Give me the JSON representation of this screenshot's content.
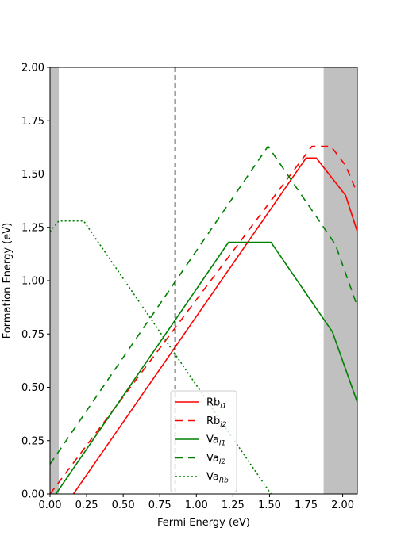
{
  "chart_data": {
    "type": "line",
    "title": "",
    "xlabel": "Fermi Energy (eV)",
    "ylabel": "Formation Energy (eV)",
    "xlim": [
      0.0,
      2.1
    ],
    "ylim": [
      0.0,
      2.0
    ],
    "xticks": [
      "0.00",
      "0.25",
      "0.50",
      "0.75",
      "1.00",
      "1.25",
      "1.50",
      "1.75",
      "2.00"
    ],
    "yticks": [
      "0.00",
      "0.25",
      "0.50",
      "0.75",
      "1.00",
      "1.25",
      "1.50",
      "1.75",
      "2.00"
    ],
    "fermi_level": 0.855,
    "shaded_regions": [
      [
        0.0,
        0.06
      ],
      [
        1.87,
        2.1
      ]
    ],
    "legend_position": "lower-center",
    "grid": false,
    "series": [
      {
        "name": "Rb",
        "subscript": "i1",
        "color": "#ff0000",
        "style": "solid",
        "x": [
          0.16,
          1.75,
          1.82,
          2.02,
          2.1
        ],
        "y": [
          0.0,
          1.575,
          1.575,
          1.4,
          1.23
        ]
      },
      {
        "name": "Rb",
        "subscript": "i2",
        "color": "#ff0000",
        "style": "dashed",
        "x": [
          0.0,
          1.79,
          1.92,
          2.02,
          2.1
        ],
        "y": [
          0.0,
          1.63,
          1.63,
          1.54,
          1.41
        ]
      },
      {
        "name": "Va",
        "subscript": "I1",
        "color": "#008000",
        "style": "solid",
        "x": [
          0.04,
          1.22,
          1.51,
          1.93,
          2.1
        ],
        "y": [
          0.0,
          1.18,
          1.18,
          0.76,
          0.43
        ]
      },
      {
        "name": "Va",
        "subscript": "I2",
        "color": "#008000",
        "style": "dashed",
        "x": [
          0.0,
          1.49,
          1.95,
          2.1
        ],
        "y": [
          0.14,
          1.63,
          1.17,
          0.88
        ]
      },
      {
        "name": "Va",
        "subscript": "Rb",
        "color": "#008000",
        "style": "dotted",
        "x": [
          0.0,
          0.06,
          0.23,
          1.51
        ],
        "y": [
          1.23,
          1.28,
          1.28,
          0.0
        ]
      }
    ]
  }
}
